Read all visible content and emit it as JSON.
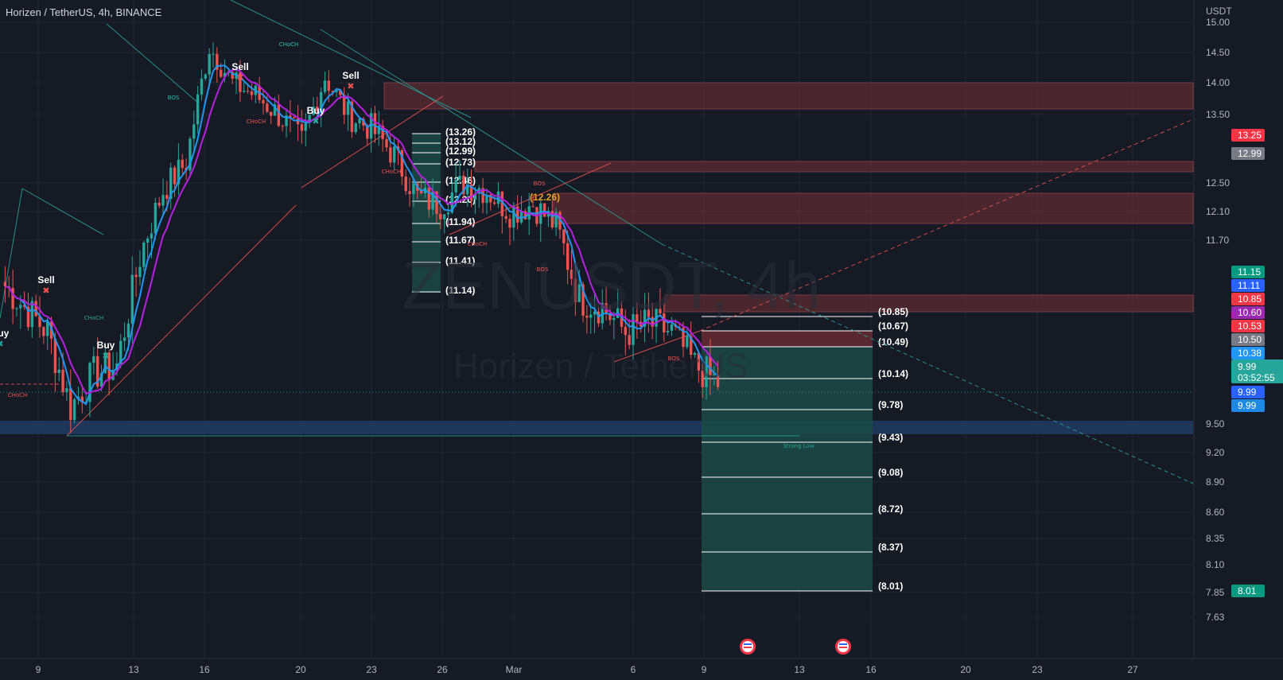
{
  "header": {
    "symbol_title": "Horizen / TetherUS, 4h, BINANCE"
  },
  "watermark": {
    "symbol": "ZENUSDT, 4h",
    "name": "Horizen / TetherUS"
  },
  "colors": {
    "background": "#161a25",
    "grid": "#232733",
    "up": "#26a69a",
    "down": "#ef5350",
    "ma_fast": "#2196f3",
    "ma_slow": "#b620e0",
    "supply_zone": "#5c2b31",
    "demand_zone": "#1e3a5f",
    "fib_fill": "#1a4a45"
  },
  "chart_data": {
    "type": "candlestick",
    "currency_label": "USDT",
    "ylim": [
      7.5,
      15.1
    ],
    "price_ticks": [
      15.0,
      14.5,
      14.0,
      13.5,
      12.5,
      12.1,
      11.7,
      9.5,
      9.2,
      8.9,
      8.6,
      8.35,
      8.1,
      7.85,
      7.63
    ],
    "price_tick_labels": [
      "15.00",
      "14.50",
      "14.00",
      "13.50",
      "12.50",
      "12.10",
      "11.70",
      "9.50",
      "9.20",
      "8.90",
      "8.60",
      "8.35",
      "8.10",
      "7.85",
      "7.63"
    ],
    "time_ticks": [
      "9",
      "13",
      "16",
      "20",
      "23",
      "26",
      "Mar",
      "6",
      "9",
      "13",
      "16",
      "20",
      "23",
      "27"
    ],
    "price_tags": [
      {
        "value": "13.25",
        "color": "#f23645"
      },
      {
        "value": "12.99",
        "color": "#787b86"
      },
      {
        "value": "11.15",
        "color": "#089981"
      },
      {
        "value": "11.11",
        "color": "#2962ff"
      },
      {
        "value": "10.85",
        "color": "#f23645"
      },
      {
        "value": "10.60",
        "color": "#9c27b0"
      },
      {
        "value": "10.53",
        "color": "#f23645"
      },
      {
        "value": "10.50",
        "color": "#787b86"
      },
      {
        "value": "10.38",
        "color": "#2196f3"
      },
      {
        "value": "9.99",
        "countdown": "03:52:55",
        "color": "#26a69a"
      },
      {
        "value": "9.99",
        "color": "#2962ff"
      },
      {
        "value": "9.99",
        "color": "#1e88e5"
      },
      {
        "value": "8.01",
        "color": "#089981"
      }
    ],
    "close_series": [
      {
        "t": "Feb 7",
        "close": 11.2
      },
      {
        "t": "Feb 8",
        "close": 10.9
      },
      {
        "t": "Feb 9",
        "close": 10.6
      },
      {
        "t": "Feb 10",
        "close": 9.7
      },
      {
        "t": "Feb 11",
        "close": 10.1
      },
      {
        "t": "Feb 12",
        "close": 10.2
      },
      {
        "t": "Feb 13",
        "close": 11.5
      },
      {
        "t": "Feb 14",
        "close": 12.4
      },
      {
        "t": "Feb 15",
        "close": 12.8
      },
      {
        "t": "Feb 16",
        "close": 14.6
      },
      {
        "t": "Feb 17",
        "close": 14.0
      },
      {
        "t": "Feb 18",
        "close": 13.8
      },
      {
        "t": "Feb 19",
        "close": 13.5
      },
      {
        "t": "Feb 20",
        "close": 13.1
      },
      {
        "t": "Feb 21",
        "close": 14.1
      },
      {
        "t": "Feb 22",
        "close": 13.5
      },
      {
        "t": "Feb 23",
        "close": 13.3
      },
      {
        "t": "Feb 24",
        "close": 12.9
      },
      {
        "t": "Feb 25",
        "close": 12.3
      },
      {
        "t": "Feb 26",
        "close": 12.2
      },
      {
        "t": "Feb 27",
        "close": 12.5
      },
      {
        "t": "Feb 28",
        "close": 12.4
      },
      {
        "t": "Mar 1",
        "close": 12.1
      },
      {
        "t": "Mar 2",
        "close": 12.2
      },
      {
        "t": "Mar 3",
        "close": 11.9
      },
      {
        "t": "Mar 4",
        "close": 11.0
      },
      {
        "t": "Mar 5",
        "close": 10.9
      },
      {
        "t": "Mar 6",
        "close": 10.6
      },
      {
        "t": "Mar 7",
        "close": 10.7
      },
      {
        "t": "Mar 8",
        "close": 10.6
      },
      {
        "t": "Mar 9",
        "close": 10.2
      },
      {
        "t": "Mar 9 16:00",
        "close": 9.99
      }
    ],
    "fib_left_levels": [
      "(13.26)",
      "(13.12)",
      "(12.99)",
      "(12.73)",
      "(12.46)",
      "(12.20)",
      "(11.94)",
      "(11.67)",
      "(11.41)",
      "(11.14)"
    ],
    "fib_right_levels": [
      "(10.85)",
      "(10.67)",
      "(10.49)",
      "(10.14)",
      "(9.78)",
      "(9.43)",
      "(9.08)",
      "(8.72)",
      "(8.37)",
      "(8.01)"
    ],
    "fib_mid_label": "(12.26)",
    "signals": [
      "Sell",
      "Buy",
      "Buy",
      "Sell",
      "Buy",
      "Sell",
      "Buy"
    ],
    "structure_labels": [
      "CHoCH",
      "CHoCH",
      "BOS",
      "CHoCH",
      "CHoCH",
      "CHoCH",
      "CHoCH",
      "BOS",
      "BOS",
      "BOS",
      "BOS",
      "CHoCH"
    ],
    "annotation": "Strong Low"
  }
}
